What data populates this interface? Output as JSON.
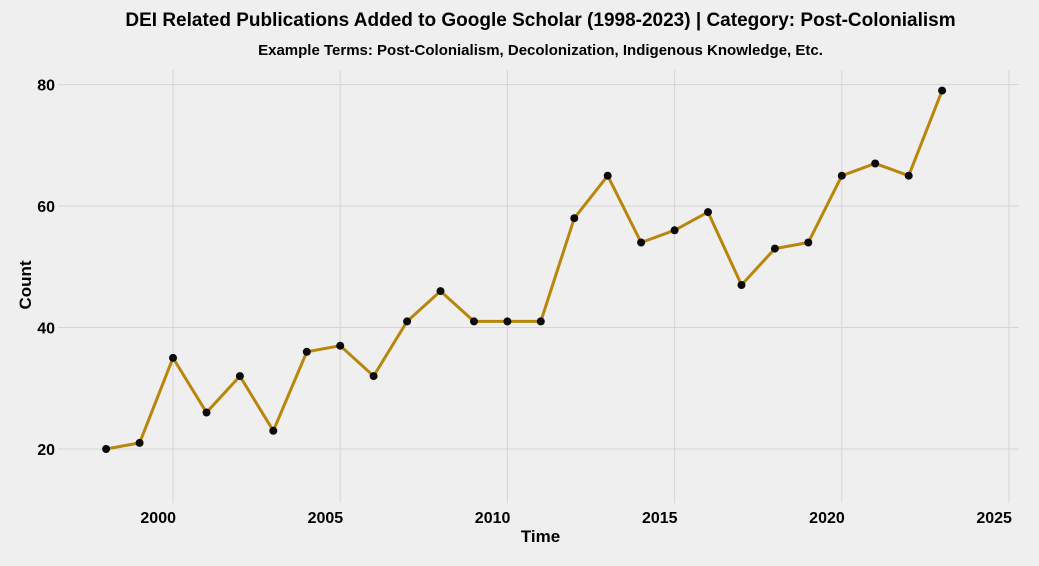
{
  "title": "DEI Related Publications Added to Google Scholar (1998-2023) | Category: Post-Colonialism",
  "subtitle": "Example Terms: Post-Colonialism, Decolonization, Indigenous Knowledge, Etc.",
  "chart_data": {
    "type": "line",
    "title": "DEI Related Publications Added to Google Scholar (1998-2023) | Category: Post-Colonialism",
    "subtitle": "Example Terms: Post-Colonialism, Decolonization, Indigenous Knowledge, Etc.",
    "xlabel": "Time",
    "ylabel": "Count",
    "x": [
      1998,
      1999,
      2000,
      2001,
      2002,
      2003,
      2004,
      2005,
      2006,
      2007,
      2008,
      2009,
      2010,
      2011,
      2012,
      2013,
      2014,
      2015,
      2016,
      2017,
      2018,
      2019,
      2020,
      2021,
      2022,
      2023
    ],
    "values": [
      20,
      21,
      35,
      26,
      32,
      23,
      36,
      37,
      32,
      41,
      46,
      41,
      41,
      41,
      58,
      65,
      54,
      56,
      59,
      47,
      53,
      54,
      65,
      67,
      65,
      79
    ],
    "x_ticks": [
      2000,
      2005,
      2010,
      2015,
      2020,
      2025
    ],
    "y_ticks": [
      20,
      40,
      60,
      80
    ],
    "xlim": [
      1996.68,
      2025.3
    ],
    "ylim": [
      11.6,
      82.4
    ],
    "grid": true,
    "legend": false,
    "colors": {
      "line": "#B8860B",
      "point": "#0A0A0A",
      "grid": "#D5D5D5",
      "background": "#EFEFEF",
      "text": "#000000"
    }
  }
}
